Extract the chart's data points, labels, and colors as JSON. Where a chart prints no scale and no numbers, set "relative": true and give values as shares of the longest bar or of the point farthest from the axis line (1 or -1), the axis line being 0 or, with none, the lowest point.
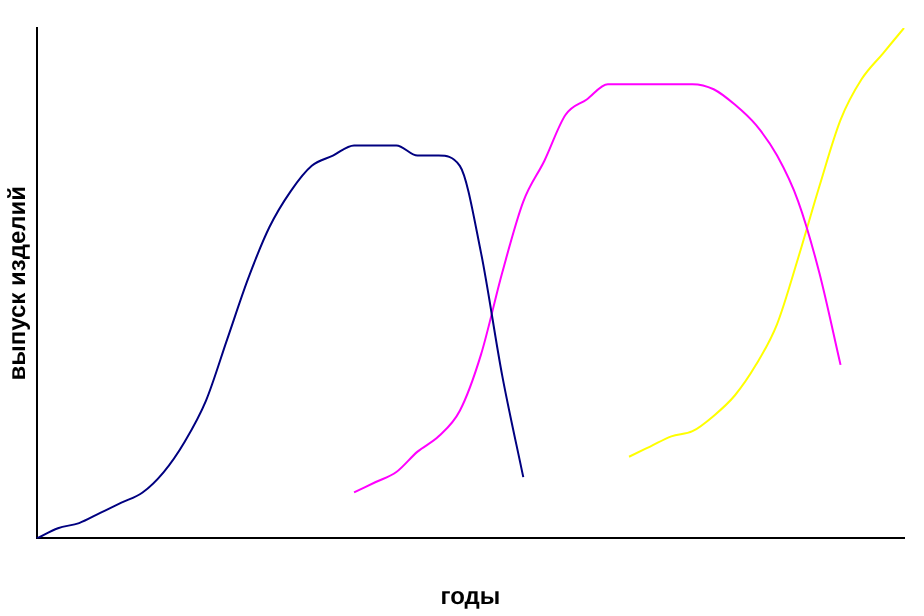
{
  "chart_data": {
    "type": "line",
    "relative": true,
    "xlabel": "годы",
    "ylabel": "выпуск изделий",
    "grid": false,
    "legend": false,
    "marker": "none",
    "line_style": "solid",
    "categories": [
      null,
      null,
      null,
      null,
      null,
      null,
      null,
      null,
      null,
      null,
      null,
      null,
      null,
      null,
      null,
      null,
      null,
      null,
      null,
      null,
      null,
      null,
      null,
      null,
      null,
      null,
      null,
      null,
      null,
      null,
      null,
      null,
      null,
      null,
      null,
      null,
      null,
      null,
      null,
      null,
      null,
      null
    ],
    "series": [
      {
        "color": "#000080",
        "values": [
          0,
          0.02,
          0.03,
          0.05,
          0.07,
          0.09,
          0.13,
          0.19,
          0.27,
          0.39,
          0.51,
          0.61,
          0.68,
          0.73,
          0.75,
          0.77,
          0.77,
          0.77,
          0.75,
          0.75,
          0.73,
          0.56,
          0.32,
          0.12,
          null,
          null,
          null,
          null,
          null,
          null,
          null,
          null,
          null,
          null,
          null,
          null,
          null,
          null,
          null,
          null,
          null,
          null
        ]
      },
      {
        "color": "#ff00ff",
        "values": [
          null,
          null,
          null,
          null,
          null,
          null,
          null,
          null,
          null,
          null,
          null,
          null,
          null,
          null,
          null,
          0.09,
          0.11,
          0.13,
          0.17,
          0.2,
          0.25,
          0.36,
          0.52,
          0.66,
          0.74,
          0.83,
          0.86,
          0.89,
          0.89,
          0.89,
          0.89,
          0.89,
          0.88,
          0.85,
          0.81,
          0.75,
          0.66,
          0.52,
          0.34,
          null,
          null,
          null
        ]
      },
      {
        "color": "#ffff00",
        "values": [
          null,
          null,
          null,
          null,
          null,
          null,
          null,
          null,
          null,
          null,
          null,
          null,
          null,
          null,
          null,
          null,
          null,
          null,
          null,
          null,
          null,
          null,
          null,
          null,
          null,
          null,
          null,
          null,
          0.16,
          0.18,
          0.2,
          0.21,
          0.24,
          0.28,
          0.34,
          0.42,
          0.55,
          0.69,
          0.82,
          0.9,
          0.95,
          1
        ]
      }
    ]
  }
}
